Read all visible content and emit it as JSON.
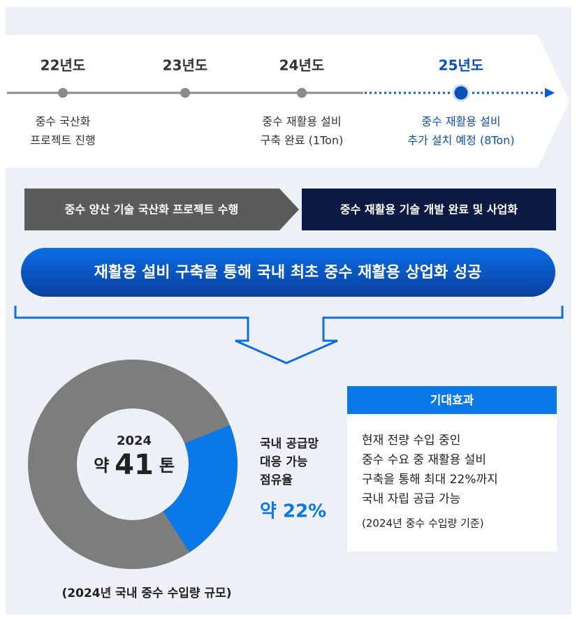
{
  "timeline": [
    {
      "year": "22년도",
      "desc": [
        "중수 국산화",
        "프로젝트 진행"
      ]
    },
    {
      "year": "23년도",
      "desc": []
    },
    {
      "year": "24년도",
      "desc": [
        "중수 재활용 설비",
        "구축 완료 (1Ton)"
      ]
    },
    {
      "year": "25년도",
      "desc": [
        "중수 재활용 설비",
        "추가 설치 예정 (8Ton)"
      ]
    }
  ],
  "phases": [
    "중수 양산 기술 국산화 프로젝트 수행",
    "중수 재활용 기술 개발 완료 및 사업화"
  ],
  "banner": "재활용 설비 구축을 통해 국내 최초 중수 재활용 상업화 성공",
  "donut": {
    "year": "2024",
    "center_prefix": "약",
    "center_value": "41",
    "center_unit": "톤",
    "share_label": [
      "국내 공급망",
      "대응 가능",
      "점유율"
    ],
    "share_value": 22,
    "share_value_label": "약 22%",
    "caption": "(2024년 국내 중수 수입량 규모)"
  },
  "effect": {
    "title": "기대효과",
    "lines": [
      "현재 전량 수입 중인",
      "중수 수요 중  재활용 설비",
      "구축을 통해 최대 22%까지",
      "국내 자립 공급 가능"
    ],
    "note": "(2024년 중수 수입량 기준)"
  }
}
